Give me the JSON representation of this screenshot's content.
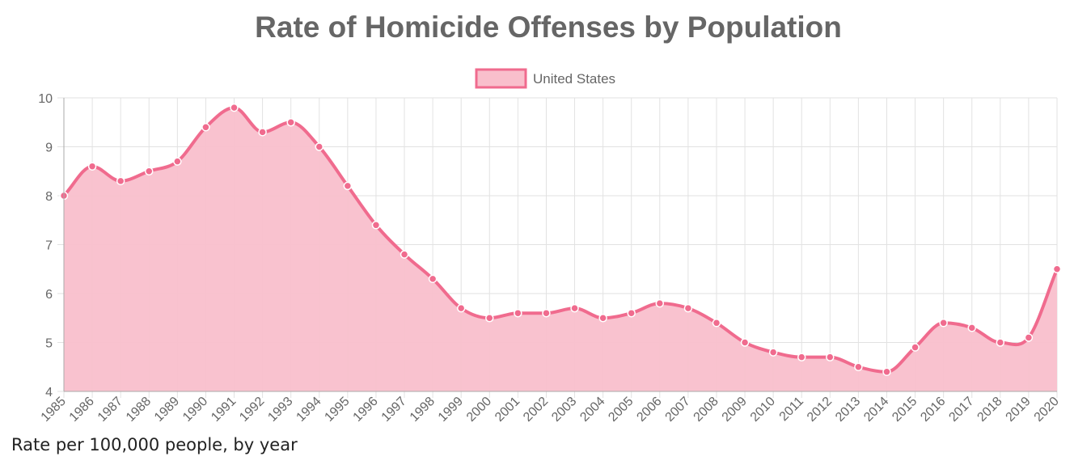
{
  "chart_data": {
    "type": "area",
    "title": "Rate of Homicide Offenses by Population",
    "categories": [
      "1985",
      "1986",
      "1987",
      "1988",
      "1989",
      "1990",
      "1991",
      "1992",
      "1993",
      "1994",
      "1995",
      "1996",
      "1997",
      "1998",
      "1999",
      "2000",
      "2001",
      "2002",
      "2003",
      "2004",
      "2005",
      "2006",
      "2007",
      "2008",
      "2009",
      "2010",
      "2011",
      "2012",
      "2013",
      "2014",
      "2015",
      "2016",
      "2017",
      "2018",
      "2019",
      "2020"
    ],
    "series": [
      {
        "name": "United States",
        "values": [
          8.0,
          8.6,
          8.3,
          8.5,
          8.7,
          9.4,
          9.8,
          9.3,
          9.5,
          9.0,
          8.2,
          7.4,
          6.8,
          6.3,
          5.7,
          5.5,
          5.6,
          5.6,
          5.7,
          5.5,
          5.6,
          5.8,
          5.7,
          5.4,
          5.0,
          4.8,
          4.7,
          4.7,
          4.5,
          4.4,
          4.9,
          5.4,
          5.3,
          5.0,
          5.1,
          6.5
        ]
      }
    ],
    "ylim": [
      4,
      10
    ],
    "yticks": [
      4,
      5,
      6,
      7,
      8,
      9,
      10
    ],
    "grid": true,
    "legend_position": "top",
    "colors": {
      "line": "#f06b8e",
      "fill": "#f9bfcc",
      "point_fill": "#f06b8e",
      "point_stroke": "#ffffff"
    }
  },
  "caption": "Rate per 100,000 people, by year"
}
